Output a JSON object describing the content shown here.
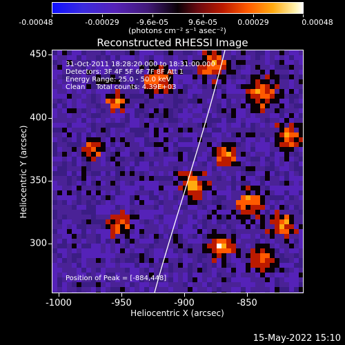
{
  "colorbar": {
    "tick_labels": [
      "-0.00048",
      "-0.00029",
      "-9.6e-05",
      "9.6e-05",
      "0.00029",
      "0.00048"
    ],
    "units": "(photons cm⁻² s⁻¹ asec⁻²)",
    "colors": [
      "#1010ff",
      "#5522b8",
      "#0a0006",
      "#bb1a00",
      "#ff5a00",
      "#ffaa10",
      "#ffffff"
    ]
  },
  "title": "Reconstructed RHESSI Image",
  "info": {
    "time": "31-Oct-2011 18:28:20.000 to 18:31:00.000",
    "detectors": "Detectors: 3F 4F 5F 6F 7F 8F Att 1",
    "energy": "Energy Range: 25.0 - 50.0 keV",
    "clean": "Clean     Total counts: 4.39E+03",
    "peak": "Position of Peak = [-884,448]"
  },
  "axes": {
    "xlabel": "Heliocentric X (arcsec)",
    "ylabel": "Heliocentric Y (arcsec)",
    "xticks": [
      "-1000",
      "-950",
      "-900",
      "-850"
    ],
    "yticks": [
      "450",
      "400",
      "350",
      "300"
    ]
  },
  "date_stamp": "15-May-2022 15:10"
}
